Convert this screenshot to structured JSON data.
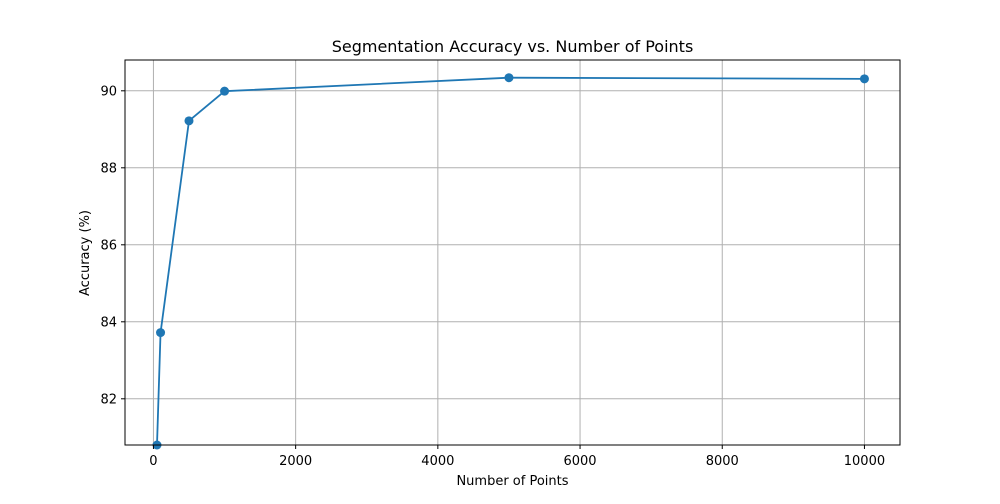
{
  "chart_data": {
    "type": "line",
    "title": "Segmentation Accuracy vs. Number of Points",
    "xlabel": "Number of Points",
    "ylabel": "Accuracy (%)",
    "xlim": [
      -400,
      10500
    ],
    "ylim": [
      80.8,
      90.8
    ],
    "xticks": [
      0,
      2000,
      4000,
      6000,
      8000,
      10000
    ],
    "yticks": [
      82,
      84,
      86,
      88,
      90
    ],
    "grid": true,
    "legend": "none",
    "series": [
      {
        "color": "#1f77b4",
        "marker": "circle",
        "x": [
          50,
          100,
          500,
          1000,
          5000,
          10000
        ],
        "y": [
          80.8,
          83.72,
          89.22,
          89.99,
          90.34,
          90.31
        ]
      }
    ]
  }
}
